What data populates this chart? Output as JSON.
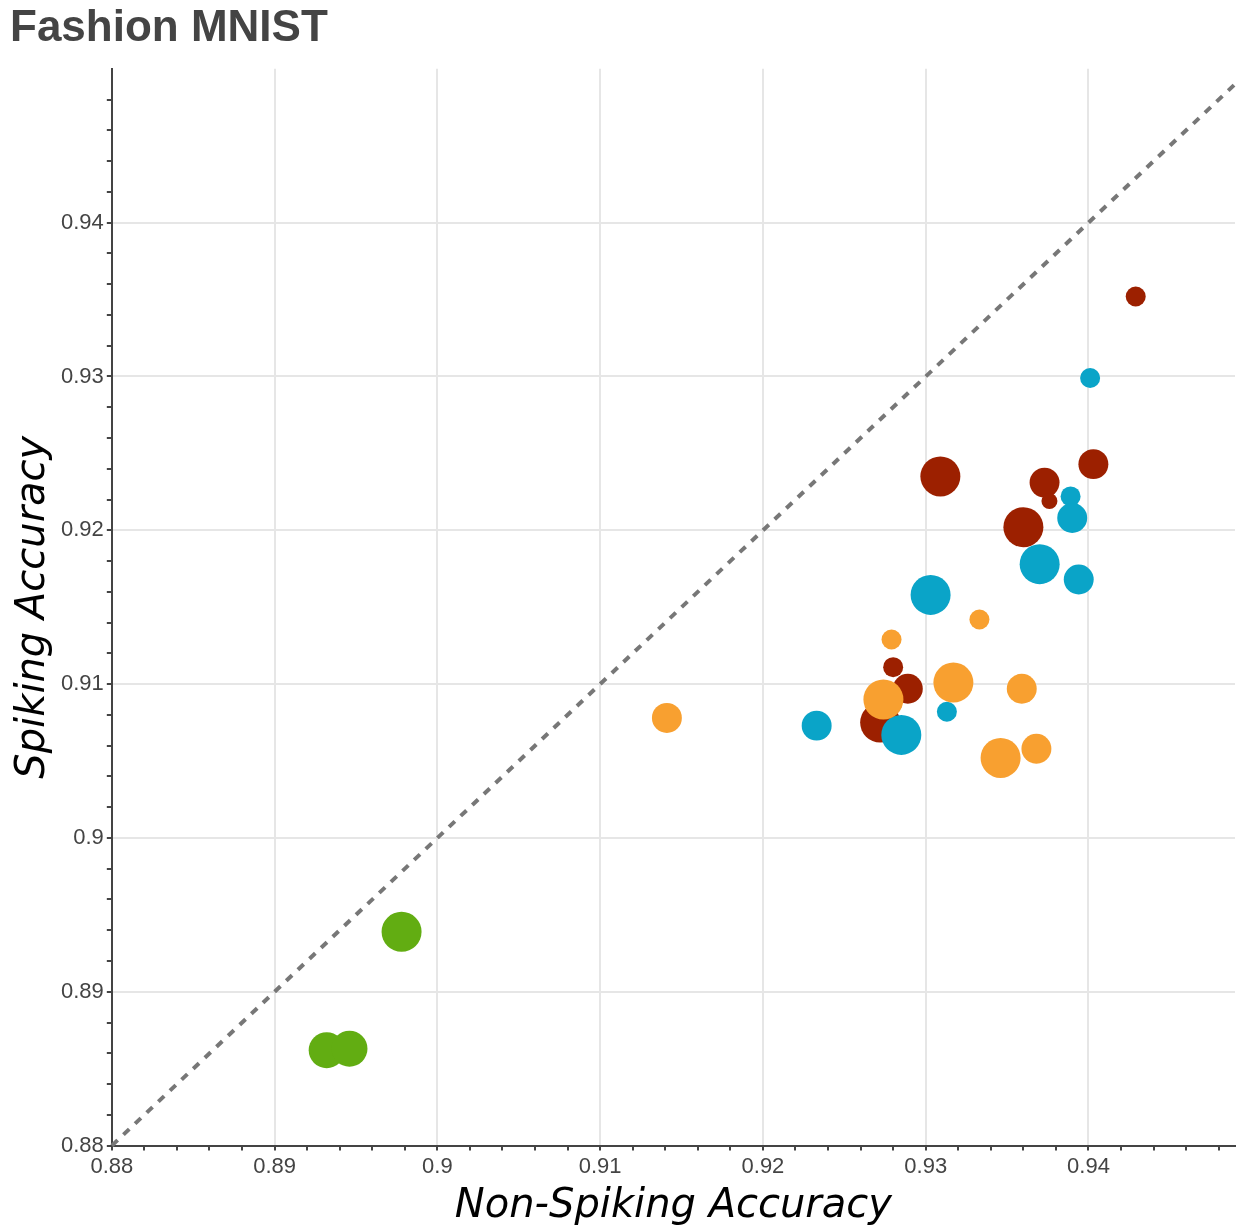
{
  "chart_data": {
    "type": "bubble",
    "title": "Fashion MNIST",
    "xlabel": "Non-Spiking Accuracy",
    "ylabel": "Spiking Accuracy",
    "xlim": [
      0.88,
      0.949
    ],
    "ylim": [
      0.88,
      0.95
    ],
    "xticks": [
      0.88,
      {
        "value": 0.882,
        "label": null
      },
      {
        "value": 0.884,
        "label": null
      },
      {
        "value": 0.886,
        "label": null
      },
      {
        "value": 0.888,
        "label": null
      },
      0.89,
      {
        "value": 0.892,
        "label": null
      },
      {
        "value": 0.894,
        "label": null
      },
      {
        "value": 0.896,
        "label": null
      },
      {
        "value": 0.898,
        "label": null
      },
      {
        "value": 0.9,
        "label": "0.9"
      },
      {
        "value": 0.902,
        "label": null
      },
      {
        "value": 0.904,
        "label": null
      },
      {
        "value": 0.906,
        "label": null
      },
      {
        "value": 0.908,
        "label": null
      },
      0.91,
      {
        "value": 0.912,
        "label": null
      },
      {
        "value": 0.914,
        "label": null
      },
      {
        "value": 0.916,
        "label": null
      },
      {
        "value": 0.918,
        "label": null
      },
      0.92,
      {
        "value": 0.922,
        "label": null
      },
      {
        "value": 0.924,
        "label": null
      },
      {
        "value": 0.926,
        "label": null
      },
      {
        "value": 0.928,
        "label": null
      },
      0.93,
      {
        "value": 0.932,
        "label": null
      },
      {
        "value": 0.934,
        "label": null
      },
      {
        "value": 0.936,
        "label": null
      },
      {
        "value": 0.938,
        "label": null
      },
      0.94,
      {
        "value": 0.942,
        "label": null
      },
      {
        "value": 0.944,
        "label": null
      },
      {
        "value": 0.946,
        "label": null
      },
      {
        "value": 0.948,
        "label": null
      }
    ],
    "yticks": [
      0.88,
      {
        "value": 0.882,
        "label": null
      },
      {
        "value": 0.884,
        "label": null
      },
      {
        "value": 0.886,
        "label": null
      },
      {
        "value": 0.888,
        "label": null
      },
      0.89,
      {
        "value": 0.892,
        "label": null
      },
      {
        "value": 0.894,
        "label": null
      },
      {
        "value": 0.896,
        "label": null
      },
      {
        "value": 0.898,
        "label": null
      },
      {
        "value": 0.9,
        "label": "0.9"
      },
      {
        "value": 0.902,
        "label": null
      },
      {
        "value": 0.904,
        "label": null
      },
      {
        "value": 0.906,
        "label": null
      },
      {
        "value": 0.908,
        "label": null
      },
      0.91,
      {
        "value": 0.912,
        "label": null
      },
      {
        "value": 0.914,
        "label": null
      },
      {
        "value": 0.916,
        "label": null
      },
      {
        "value": 0.918,
        "label": null
      },
      0.92,
      {
        "value": 0.922,
        "label": null
      },
      {
        "value": 0.924,
        "label": null
      },
      {
        "value": 0.926,
        "label": null
      },
      {
        "value": 0.928,
        "label": null
      },
      0.93,
      {
        "value": 0.932,
        "label": null
      },
      {
        "value": 0.934,
        "label": null
      },
      {
        "value": 0.936,
        "label": null
      },
      {
        "value": 0.938,
        "label": null
      },
      0.94,
      {
        "value": 0.942,
        "label": null
      },
      {
        "value": 0.944,
        "label": null
      },
      {
        "value": 0.946,
        "label": null
      },
      {
        "value": 0.948,
        "label": null
      }
    ],
    "grid": true,
    "legend": false,
    "series": [
      {
        "type": "line",
        "color": "#777777",
        "line_style": "dashed",
        "marker": "none",
        "x": [
          0.88,
          0.949
        ],
        "values": [
          0.88,
          0.949
        ]
      },
      {
        "color": "#62ad12",
        "x": [
          0.8978,
          0.8932,
          0.8946
        ],
        "values": [
          0.8939,
          0.8862,
          0.8863
        ],
        "sizes": [
          1,
          0.81,
          0.81
        ]
      },
      {
        "color": "#f8a030",
        "x": [
          0.9141,
          0.9279,
          0.9274,
          0.9317,
          0.9333,
          0.9359,
          0.9368,
          0.9346
        ],
        "values": [
          0.9078,
          0.9129,
          0.909,
          0.9101,
          0.9142,
          0.9097,
          0.9058,
          0.9052
        ],
        "sizes": [
          0.56,
          0.25,
          1,
          1,
          0.25,
          0.56,
          0.56,
          1
        ]
      },
      {
        "color": "#0aa4c8",
        "x": [
          0.9401,
          0.9389,
          0.939,
          0.937,
          0.9394,
          0.9303,
          0.9313,
          0.9233,
          0.9285
        ],
        "values": [
          0.9299,
          0.9222,
          0.9208,
          0.9178,
          0.9168,
          0.9158,
          0.9082,
          0.9073,
          0.9067
        ],
        "sizes": [
          0.25,
          0.25,
          0.56,
          1,
          0.56,
          1,
          0.25,
          0.56,
          1
        ]
      },
      {
        "color": "#9c2000",
        "x": [
          0.9429,
          0.9309,
          0.9373,
          0.9403,
          0.9376,
          0.936,
          0.928,
          0.9289,
          0.9272
        ],
        "values": [
          0.9352,
          0.9235,
          0.9231,
          0.9243,
          0.9219,
          0.9202,
          0.9111,
          0.9097,
          0.9075
        ],
        "sizes": [
          0.25,
          1,
          0.56,
          0.56,
          0.16,
          1,
          0.25,
          0.56,
          1
        ]
      }
    ]
  }
}
